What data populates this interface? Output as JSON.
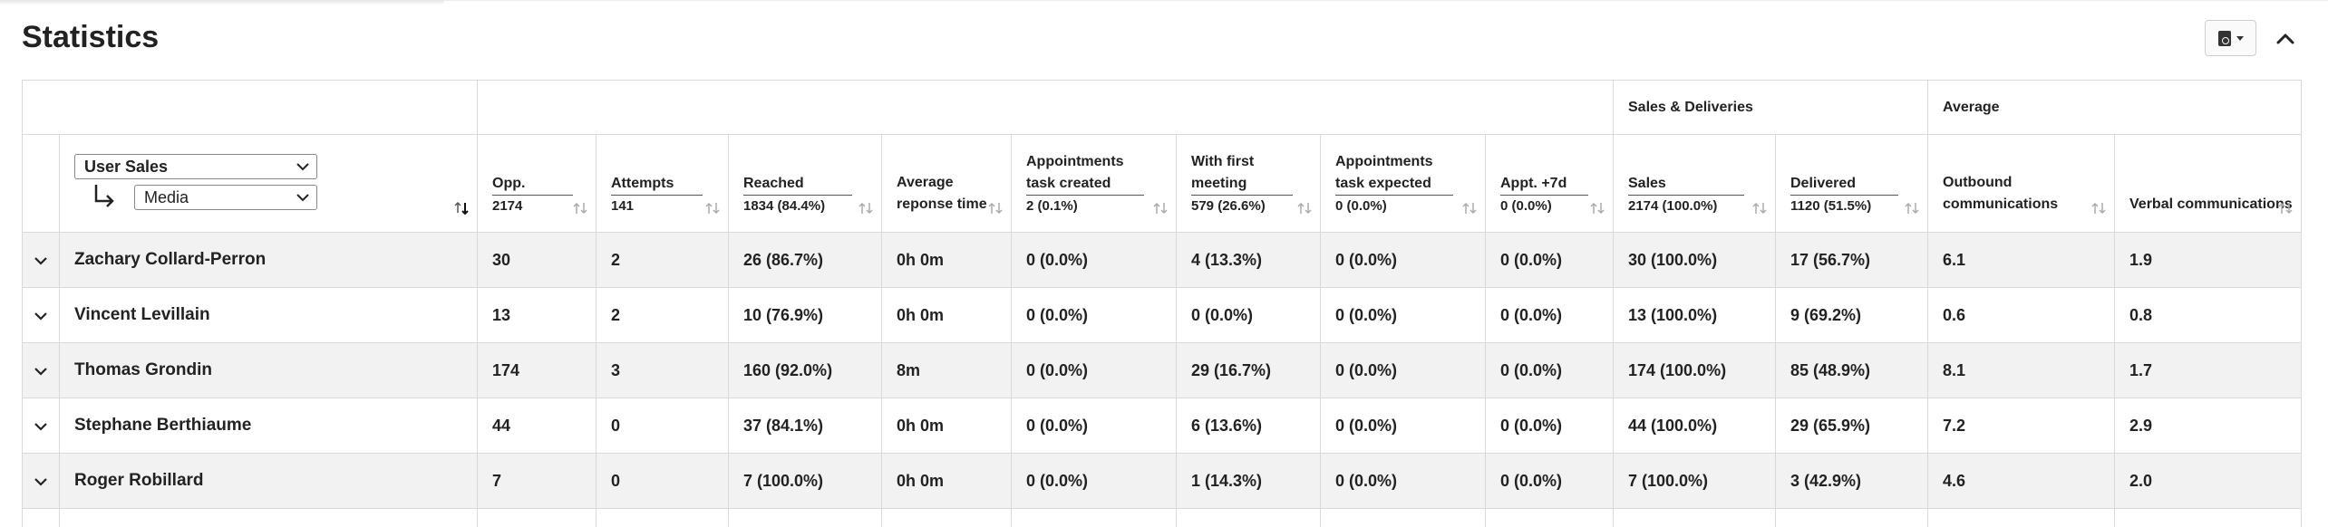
{
  "title": "Statistics",
  "group_headers": {
    "sales_deliveries": "Sales & Deliveries",
    "average": "Average"
  },
  "selector": {
    "primary": "User Sales",
    "secondary": "Media"
  },
  "columns": [
    {
      "title": "Opp.",
      "total": "2174"
    },
    {
      "title": "Attempts",
      "total": "141"
    },
    {
      "title": "Reached",
      "total": "1834 (84.4%)"
    },
    {
      "title": "Average reponse time",
      "total": ""
    },
    {
      "title": "Appointments task created",
      "total": "2 (0.1%)"
    },
    {
      "title": "With first meeting",
      "total": "579 (26.6%)"
    },
    {
      "title": "Appointments task expected",
      "total": "0 (0.0%)"
    },
    {
      "title": "Appt. +7d",
      "total": "0 (0.0%)"
    },
    {
      "title": "Sales",
      "total": "2174 (100.0%)"
    },
    {
      "title": "Delivered",
      "total": "1120 (51.5%)"
    },
    {
      "title": "Outbound communications",
      "total": ""
    },
    {
      "title": "Verbal communications",
      "total": ""
    }
  ],
  "rows": [
    {
      "name": "Zachary Collard-Perron",
      "cells": [
        "30",
        "2",
        "26 (86.7%)",
        "0h 0m",
        "0 (0.0%)",
        "4 (13.3%)",
        "0 (0.0%)",
        "0 (0.0%)",
        "30 (100.0%)",
        "17 (56.7%)",
        "6.1",
        "1.9"
      ]
    },
    {
      "name": "Vincent Levillain",
      "cells": [
        "13",
        "2",
        "10 (76.9%)",
        "0h 0m",
        "0 (0.0%)",
        "0 (0.0%)",
        "0 (0.0%)",
        "0 (0.0%)",
        "13 (100.0%)",
        "9 (69.2%)",
        "0.6",
        "0.8"
      ]
    },
    {
      "name": "Thomas Grondin",
      "cells": [
        "174",
        "3",
        "160 (92.0%)",
        "8m",
        "0 (0.0%)",
        "29 (16.7%)",
        "0 (0.0%)",
        "0 (0.0%)",
        "174 (100.0%)",
        "85 (48.9%)",
        "8.1",
        "1.7"
      ]
    },
    {
      "name": "Stephane Berthiaume",
      "cells": [
        "44",
        "0",
        "37 (84.1%)",
        "0h 0m",
        "0 (0.0%)",
        "6 (13.6%)",
        "0 (0.0%)",
        "0 (0.0%)",
        "44 (100.0%)",
        "29 (65.9%)",
        "7.2",
        "2.9"
      ]
    },
    {
      "name": "Roger Robillard",
      "cells": [
        "7",
        "0",
        "7 (100.0%)",
        "0h 0m",
        "0 (0.0%)",
        "1 (14.3%)",
        "0 (0.0%)",
        "0 (0.0%)",
        "7 (100.0%)",
        "3 (42.9%)",
        "4.6",
        "2.0"
      ]
    }
  ]
}
